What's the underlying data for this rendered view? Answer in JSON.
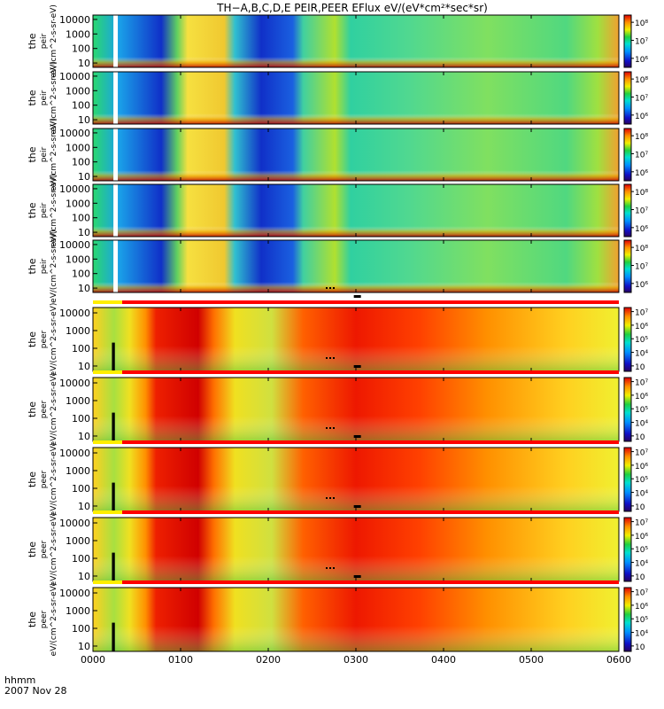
{
  "chart_data": {
    "type": "heatmap",
    "title": "TH−A,B,C,D,E PEIR,PEER EFlux eV/(eV*cm²*sec*sr)",
    "xlabel": "hhmm",
    "date_label": "2007 Nov 28",
    "x_range_min": [
      0,
      360
    ],
    "x_ticks": [
      "0000",
      "0100",
      "0200",
      "0300",
      "0400",
      "0500",
      "0600"
    ],
    "x_tick_minutes": [
      0,
      60,
      120,
      180,
      240,
      300,
      360
    ],
    "y_scale": "log",
    "y_ticks": [
      "10",
      "100",
      "1000",
      "10000"
    ],
    "y_tick_values": [
      10,
      100,
      1000,
      10000
    ],
    "ion_colorbar_ticks": [
      "10⁸",
      "10⁷",
      "10⁶"
    ],
    "ion_colorbar_values": [
      8,
      7,
      6
    ],
    "electron_colorbar_ticks": [
      "10⁷",
      "10⁶",
      "10⁵",
      "10⁴",
      "10⁳"
    ],
    "electron_colorbar_values": [
      7,
      6,
      5,
      4,
      3
    ],
    "panels": [
      {
        "species": "ion",
        "probe": "A",
        "ylabel_line1": "the",
        "ylabel_line2": "peir",
        "ylabel_line3": "eV/(cm^2-s-sr-eV)",
        "data_gap_min": [
          14,
          17
        ]
      },
      {
        "species": "ion",
        "probe": "B",
        "ylabel_line1": "the",
        "ylabel_line2": "peir",
        "ylabel_line3": "eV/(cm^2-s-sr-eV)",
        "data_gap_min": [
          14,
          17
        ]
      },
      {
        "species": "ion",
        "probe": "C",
        "ylabel_line1": "the",
        "ylabel_line2": "peir",
        "ylabel_line3": "eV/(cm^2-s-sr-eV)",
        "data_gap_min": [
          14,
          17
        ]
      },
      {
        "species": "ion",
        "probe": "D",
        "ylabel_line1": "the",
        "ylabel_line2": "peir",
        "ylabel_line3": "eV/(cm^2-s-sr-eV)",
        "data_gap_min": [
          14,
          17
        ]
      },
      {
        "species": "ion",
        "probe": "E",
        "ylabel_line1": "the",
        "ylabel_line2": "peir",
        "ylabel_line3": "eV/(cm^2-s-sr-eV)",
        "data_gap_min": [
          14,
          17
        ]
      },
      {
        "species": "electron",
        "probe": "A",
        "ylabel_line1": "the",
        "ylabel_line2": "peer",
        "ylabel_line3": "eV/(cm^2-s-sr-eV)",
        "data_gap_min": [
          13,
          15
        ]
      },
      {
        "species": "electron",
        "probe": "B",
        "ylabel_line1": "the",
        "ylabel_line2": "peer",
        "ylabel_line3": "eV/(cm^2-s-sr-eV)",
        "data_gap_min": [
          13,
          15
        ]
      },
      {
        "species": "electron",
        "probe": "C",
        "ylabel_line1": "the",
        "ylabel_line2": "peer",
        "ylabel_line3": "eV/(cm^2-s-sr-eV)",
        "data_gap_min": [
          13,
          15
        ]
      },
      {
        "species": "electron",
        "probe": "D",
        "ylabel_line1": "the",
        "ylabel_line2": "peer",
        "ylabel_line3": "eV/(cm^2-s-sr-eV)",
        "data_gap_min": [
          13,
          15
        ]
      },
      {
        "species": "electron",
        "probe": "E",
        "ylabel_line1": "the",
        "ylabel_line2": "peer",
        "ylabel_line3": "eV/(cm^2-s-sr-eV)",
        "data_gap_min": [
          13,
          15
        ]
      }
    ],
    "mode_bar": {
      "segments": [
        {
          "start_min": 0,
          "end_min": 20,
          "color": "#ffee00"
        },
        {
          "start_min": 20,
          "end_min": 360,
          "color": "#ff0000"
        }
      ],
      "marker_min": 181
    }
  }
}
